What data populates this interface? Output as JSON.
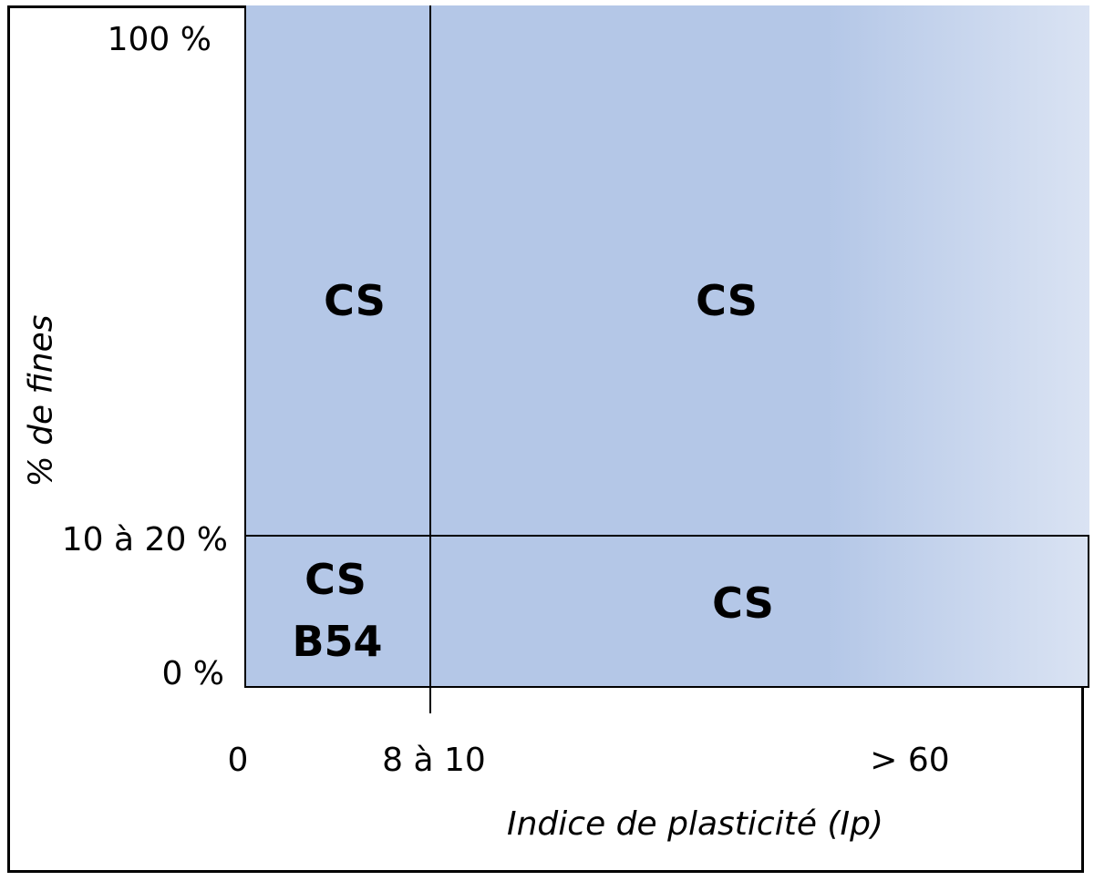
{
  "axes": {
    "y_title": "% de fines",
    "x_title": "Indice de plasticité (Ip)",
    "y_ticks": [
      "100 %",
      "10 à 20 %",
      "0 %"
    ],
    "x_ticks": [
      "0",
      "8 à 10",
      "> 60"
    ]
  },
  "zones": {
    "top_left": "CS",
    "top_right": "CS",
    "bottom_left_line1": "CS",
    "bottom_left_line2": "B54",
    "bottom_right": "CS"
  },
  "colors": {
    "zone_fill": "#b4c7e7",
    "zone_fill_fade": "#dae3f3",
    "lines": "#000000"
  }
}
